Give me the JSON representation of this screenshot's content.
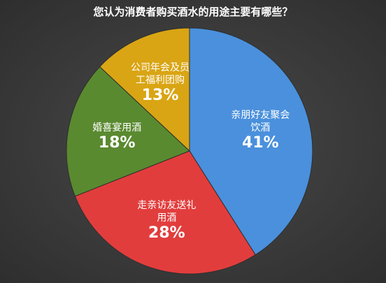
{
  "chart_data": {
    "type": "pie",
    "title": "您认为消费者购买酒水的用途主要有哪些？",
    "categories": [
      "亲朋好友聚会饮酒",
      "走亲访友送礼用酒",
      "婚喜宴用酒",
      "公司年会及员工福利团购"
    ],
    "values": [
      41,
      28,
      18,
      13
    ],
    "value_labels": [
      "41%",
      "28%",
      "18%",
      "13%"
    ],
    "colors": [
      "#4a90dc",
      "#e23d3d",
      "#5a8a30",
      "#d9a514"
    ]
  }
}
